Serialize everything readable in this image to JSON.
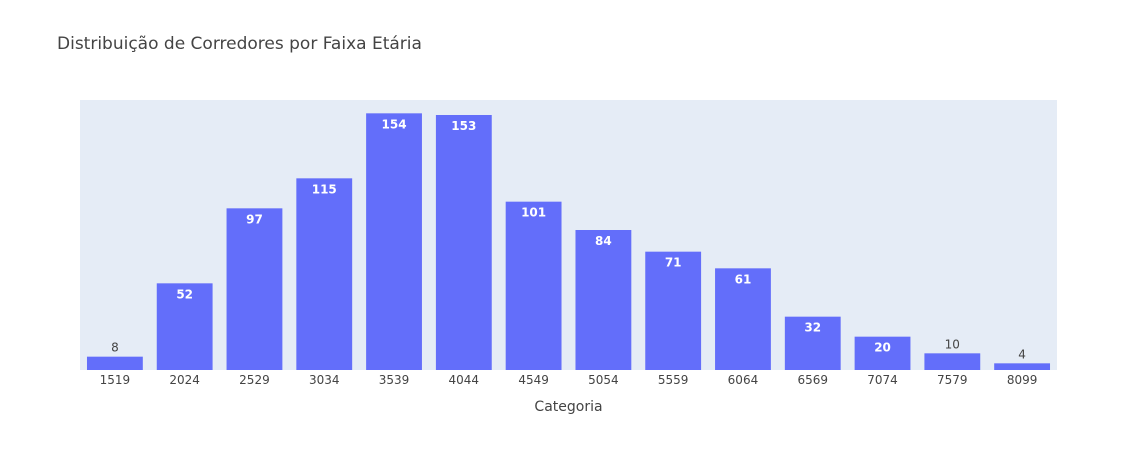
{
  "chart_data": {
    "type": "bar",
    "title": "Distribuição de Corredores por Faixa Etária",
    "xlabel": "Categoria",
    "ylabel": "",
    "categories": [
      "1519",
      "2024",
      "2529",
      "3034",
      "3539",
      "4044",
      "4549",
      "5054",
      "5559",
      "6064",
      "6569",
      "7074",
      "7579",
      "8099"
    ],
    "values": [
      8,
      52,
      97,
      115,
      154,
      153,
      101,
      84,
      71,
      61,
      32,
      20,
      10,
      4
    ],
    "data_labels": [
      "8",
      "52",
      "97",
      "115",
      "154",
      "153",
      "101",
      "84",
      "71",
      "61",
      "32",
      "20",
      "10",
      "4"
    ],
    "ylim": [
      0,
      162
    ],
    "grid": false,
    "legend": "none",
    "colors": {
      "bar": "#636efa",
      "plot_background": "#e5ecf6",
      "text": "#444444",
      "label_inside": "#ffffff"
    }
  }
}
